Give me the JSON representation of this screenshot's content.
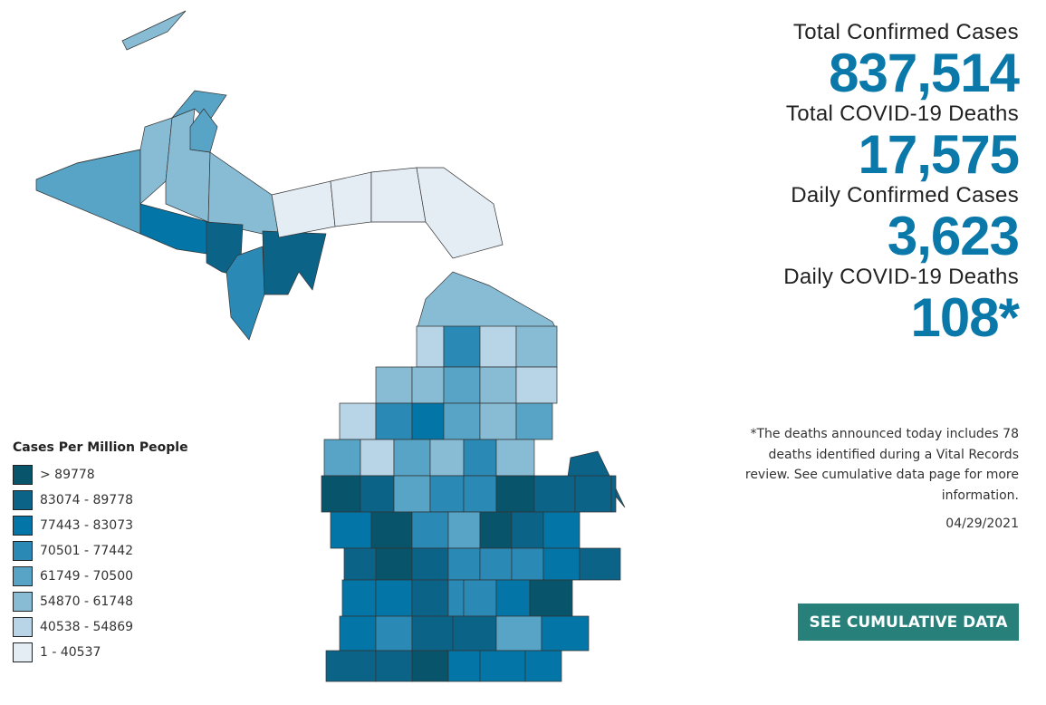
{
  "stats": [
    {
      "label": "Total Confirmed Cases",
      "value": "837,514"
    },
    {
      "label": "Total COVID-19 Deaths",
      "value": "17,575"
    },
    {
      "label": "Daily Confirmed Cases",
      "value": "3,623"
    },
    {
      "label": "Daily COVID-19 Deaths",
      "value": "108*"
    }
  ],
  "note": "*The deaths announced today includes 78 deaths identified during a Vital Records review. See cumulative data page for more information.",
  "date": "04/29/2021",
  "button_label": "SEE CUMULATIVE DATA",
  "colors": {
    "value": "#0a78a8",
    "button": "#27807a"
  },
  "legend": {
    "title": "Cases Per Million People",
    "items": [
      {
        "label": "> 89778",
        "color": "#07546b"
      },
      {
        "label": "83074 - 89778",
        "color": "#0c6388"
      },
      {
        "label": "77443 - 83073",
        "color": "#0375a6"
      },
      {
        "label": "70501 - 77442",
        "color": "#2b8ab5"
      },
      {
        "label": "61749 - 70500",
        "color": "#57a4c6"
      },
      {
        "label": "54870 - 61748",
        "color": "#88bcd4"
      },
      {
        "label": "40538 - 54869",
        "color": "#b7d5e6"
      },
      {
        "label": "1 - 40537",
        "color": "#e4ecf4"
      }
    ]
  },
  "map": {
    "upper_classes": [
      4,
      5,
      5,
      4,
      4,
      5,
      2,
      1,
      3,
      1,
      7,
      7,
      7,
      7,
      5
    ],
    "lower_classes": [
      6,
      3,
      6,
      5,
      5,
      5,
      4,
      5,
      6,
      6,
      3,
      2,
      4,
      5,
      4,
      4,
      6,
      4,
      5,
      3,
      5,
      0,
      1,
      4,
      3,
      3,
      0,
      1,
      1,
      1,
      2,
      0,
      3,
      4,
      0,
      1,
      2,
      1,
      0,
      1,
      3,
      3,
      3,
      2,
      1,
      2,
      2,
      1,
      3,
      3,
      2,
      0,
      2,
      3,
      1,
      1,
      4,
      2,
      1,
      1,
      0,
      2,
      2,
      2
    ]
  }
}
